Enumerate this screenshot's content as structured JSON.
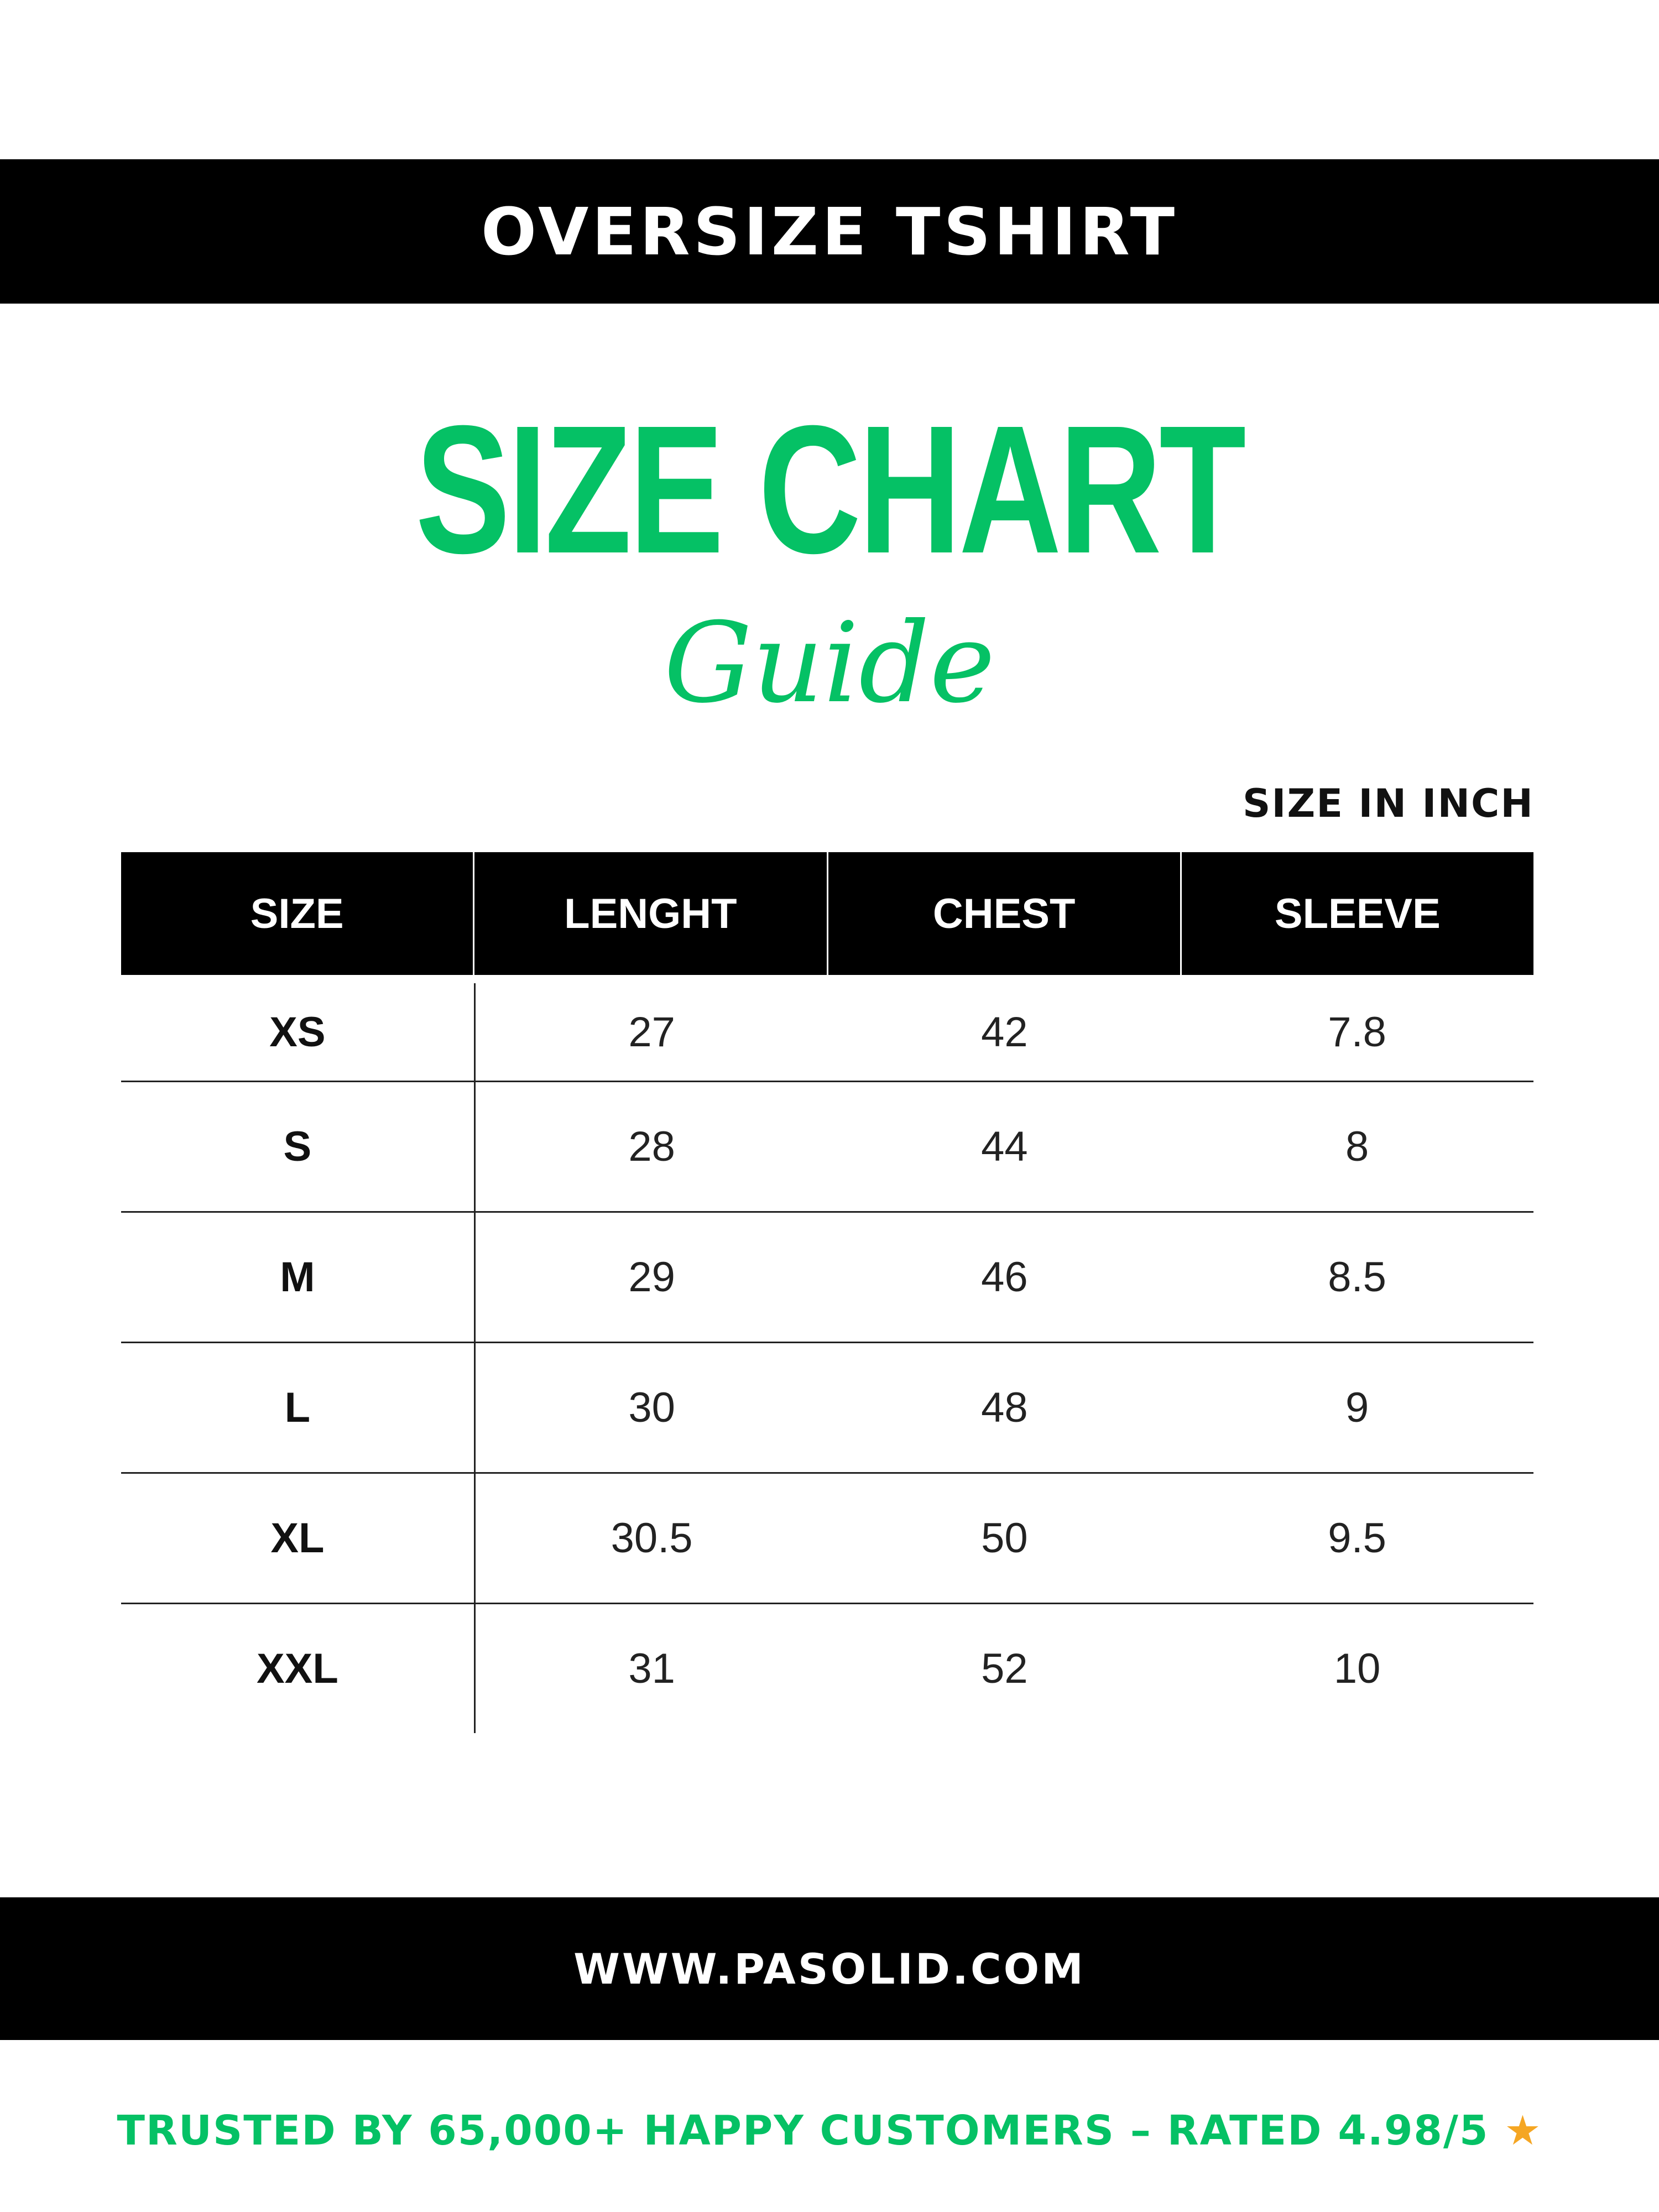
{
  "header": {
    "title": "OVERSIZE TSHIRT"
  },
  "heading": {
    "title": "SIZE CHART",
    "subtitle": "Guide"
  },
  "unit_label": "SIZE IN INCH",
  "table": {
    "columns": [
      "SIZE",
      "LENGHT",
      "CHEST",
      "SLEEVE"
    ],
    "rows": [
      [
        "XS",
        "27",
        "42",
        "7.8"
      ],
      [
        "S",
        "28",
        "44",
        "8"
      ],
      [
        "M",
        "29",
        "46",
        "8.5"
      ],
      [
        "L",
        "30",
        "48",
        "9"
      ],
      [
        "XL",
        "30.5",
        "50",
        "9.5"
      ],
      [
        "XXL",
        "31",
        "52",
        "10"
      ]
    ]
  },
  "footer": {
    "website": "WWW.PASOLID.COM",
    "trust_text": "TRUSTED BY 65,000+ HAPPY CUSTOMERS – RATED 4.98/5",
    "star_icon": "star-icon"
  },
  "colors": {
    "accent": "#05c165",
    "star": "#f5a623",
    "bar": "#000000"
  }
}
